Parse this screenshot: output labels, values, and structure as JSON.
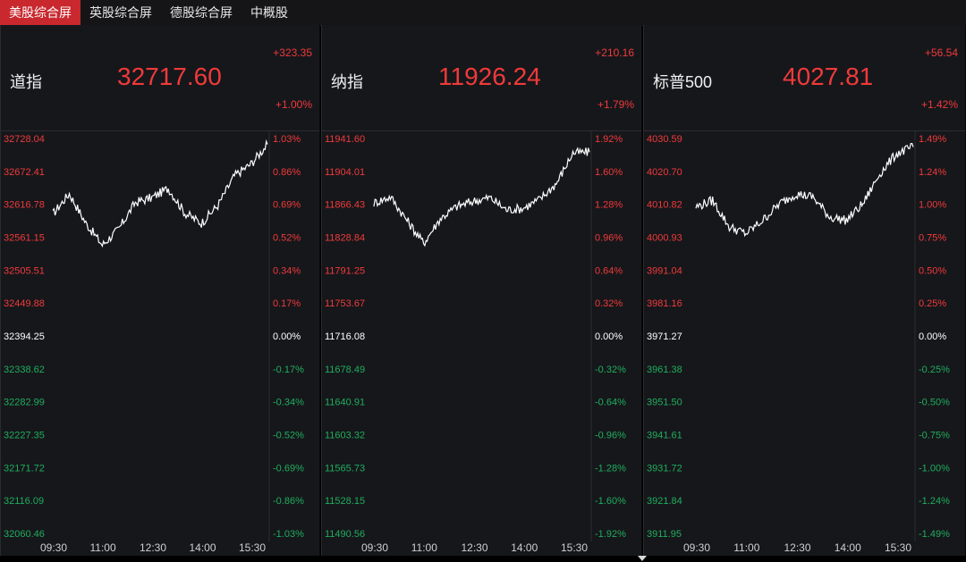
{
  "tabs": [
    {
      "label": "美股综合屏",
      "active": true
    },
    {
      "label": "英股综合屏",
      "active": false
    },
    {
      "label": "德股综合屏",
      "active": false
    },
    {
      "label": "中概股",
      "active": false
    }
  ],
  "colors": {
    "up": "#f03a3a",
    "down": "#1fae5e",
    "flat": "#ffffff",
    "line": "#ffffff",
    "grid": "#2c2d32"
  },
  "panels": [
    {
      "name": "道指",
      "price": "32717.60",
      "change": "+323.35",
      "change_pct": "+1.00%",
      "y_labels": [
        "32728.04",
        "32672.41",
        "32616.78",
        "32561.15",
        "32505.51",
        "32449.88",
        "32394.25",
        "32338.62",
        "32282.99",
        "32227.35",
        "32171.72",
        "32116.09",
        "32060.46"
      ],
      "pct_labels": [
        "1.03%",
        "0.86%",
        "0.69%",
        "0.52%",
        "0.34%",
        "0.17%",
        "0.00%",
        "-0.17%",
        "-0.34%",
        "-0.52%",
        "-0.69%",
        "-0.86%",
        "-1.03%"
      ],
      "x_labels": [
        "09:30",
        "11:00",
        "12:30",
        "14:00",
        "15:30"
      ]
    },
    {
      "name": "纳指",
      "price": "11926.24",
      "change": "+210.16",
      "change_pct": "+1.79%",
      "y_labels": [
        "11941.60",
        "11904.01",
        "11866.43",
        "11828.84",
        "11791.25",
        "11753.67",
        "11716.08",
        "11678.49",
        "11640.91",
        "11603.32",
        "11565.73",
        "11528.15",
        "11490.56"
      ],
      "pct_labels": [
        "1.92%",
        "1.60%",
        "1.28%",
        "0.96%",
        "0.64%",
        "0.32%",
        "0.00%",
        "-0.32%",
        "-0.64%",
        "-0.96%",
        "-1.28%",
        "-1.60%",
        "-1.92%"
      ],
      "x_labels": [
        "09:30",
        "11:00",
        "12:30",
        "14:00",
        "15:30"
      ]
    },
    {
      "name": "标普500",
      "price": "4027.81",
      "change": "+56.54",
      "change_pct": "+1.42%",
      "y_labels": [
        "4030.59",
        "4020.70",
        "4010.82",
        "4000.93",
        "3991.04",
        "3981.16",
        "3971.27",
        "3961.38",
        "3951.50",
        "3941.61",
        "3931.72",
        "3921.84",
        "3911.95"
      ],
      "pct_labels": [
        "1.49%",
        "1.24%",
        "1.00%",
        "0.75%",
        "0.50%",
        "0.25%",
        "0.00%",
        "-0.25%",
        "-0.50%",
        "-0.75%",
        "-1.00%",
        "-1.24%",
        "-1.49%"
      ],
      "x_labels": [
        "09:30",
        "11:00",
        "12:30",
        "14:00",
        "15:30"
      ]
    }
  ],
  "chart_data": [
    {
      "type": "line",
      "title": "道指",
      "x": [
        "09:30",
        "10:00",
        "10:30",
        "11:00",
        "11:30",
        "12:00",
        "12:30",
        "13:00",
        "13:30",
        "14:00",
        "14:30",
        "15:00",
        "15:30",
        "16:00"
      ],
      "values": [
        32600,
        32635,
        32585,
        32548,
        32575,
        32620,
        32628,
        32644,
        32602,
        32585,
        32615,
        32665,
        32685,
        32718
      ],
      "ylim": [
        32060.46,
        32728.04
      ]
    },
    {
      "type": "line",
      "title": "纳指",
      "x": [
        "09:30",
        "10:00",
        "10:30",
        "11:00",
        "11:30",
        "12:00",
        "12:30",
        "13:00",
        "13:30",
        "14:00",
        "14:30",
        "15:00",
        "15:30",
        "16:00"
      ],
      "values": [
        11868,
        11875,
        11848,
        11822,
        11850,
        11864,
        11870,
        11874,
        11860,
        11862,
        11872,
        11890,
        11925,
        11926
      ],
      "ylim": [
        11490.56,
        11941.6
      ]
    },
    {
      "type": "line",
      "title": "标普500",
      "x": [
        "09:30",
        "10:00",
        "10:30",
        "11:00",
        "11:30",
        "12:00",
        "12:30",
        "13:00",
        "13:30",
        "14:00",
        "14:30",
        "15:00",
        "15:30",
        "16:00"
      ],
      "values": [
        4010,
        4012,
        4004,
        4002,
        4006,
        4011,
        4014,
        4013,
        4007,
        4006,
        4011,
        4020,
        4026,
        4028
      ],
      "ylim": [
        3911.95,
        4030.59
      ]
    }
  ]
}
